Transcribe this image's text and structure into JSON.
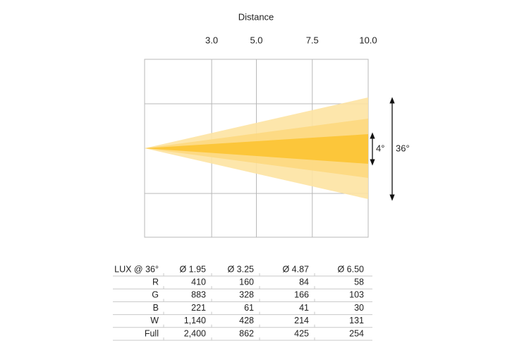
{
  "diagram": {
    "axis_title": "Distance",
    "xlim": [
      0,
      10
    ],
    "ticks": [
      {
        "value": 3,
        "label": "3.0"
      },
      {
        "value": 5,
        "label": "5.0"
      },
      {
        "value": 7.5,
        "label": "7.5"
      },
      {
        "value": 10,
        "label": "10.0"
      }
    ],
    "beam_labels": [
      "4°",
      "36°"
    ]
  },
  "table": {
    "header": [
      "LUX @ 36°",
      "Ø 1.95",
      "Ø 3.25",
      "Ø 4.87",
      "Ø 6.50"
    ],
    "rows": [
      [
        "R",
        "410",
        "160",
        "84",
        "58"
      ],
      [
        "G",
        "883",
        "328",
        "166",
        "103"
      ],
      [
        "B",
        "221",
        "61",
        "41",
        "30"
      ],
      [
        "W",
        "1,140",
        "428",
        "214",
        "131"
      ],
      [
        "Full",
        "2,400",
        "862",
        "425",
        "254"
      ]
    ]
  }
}
